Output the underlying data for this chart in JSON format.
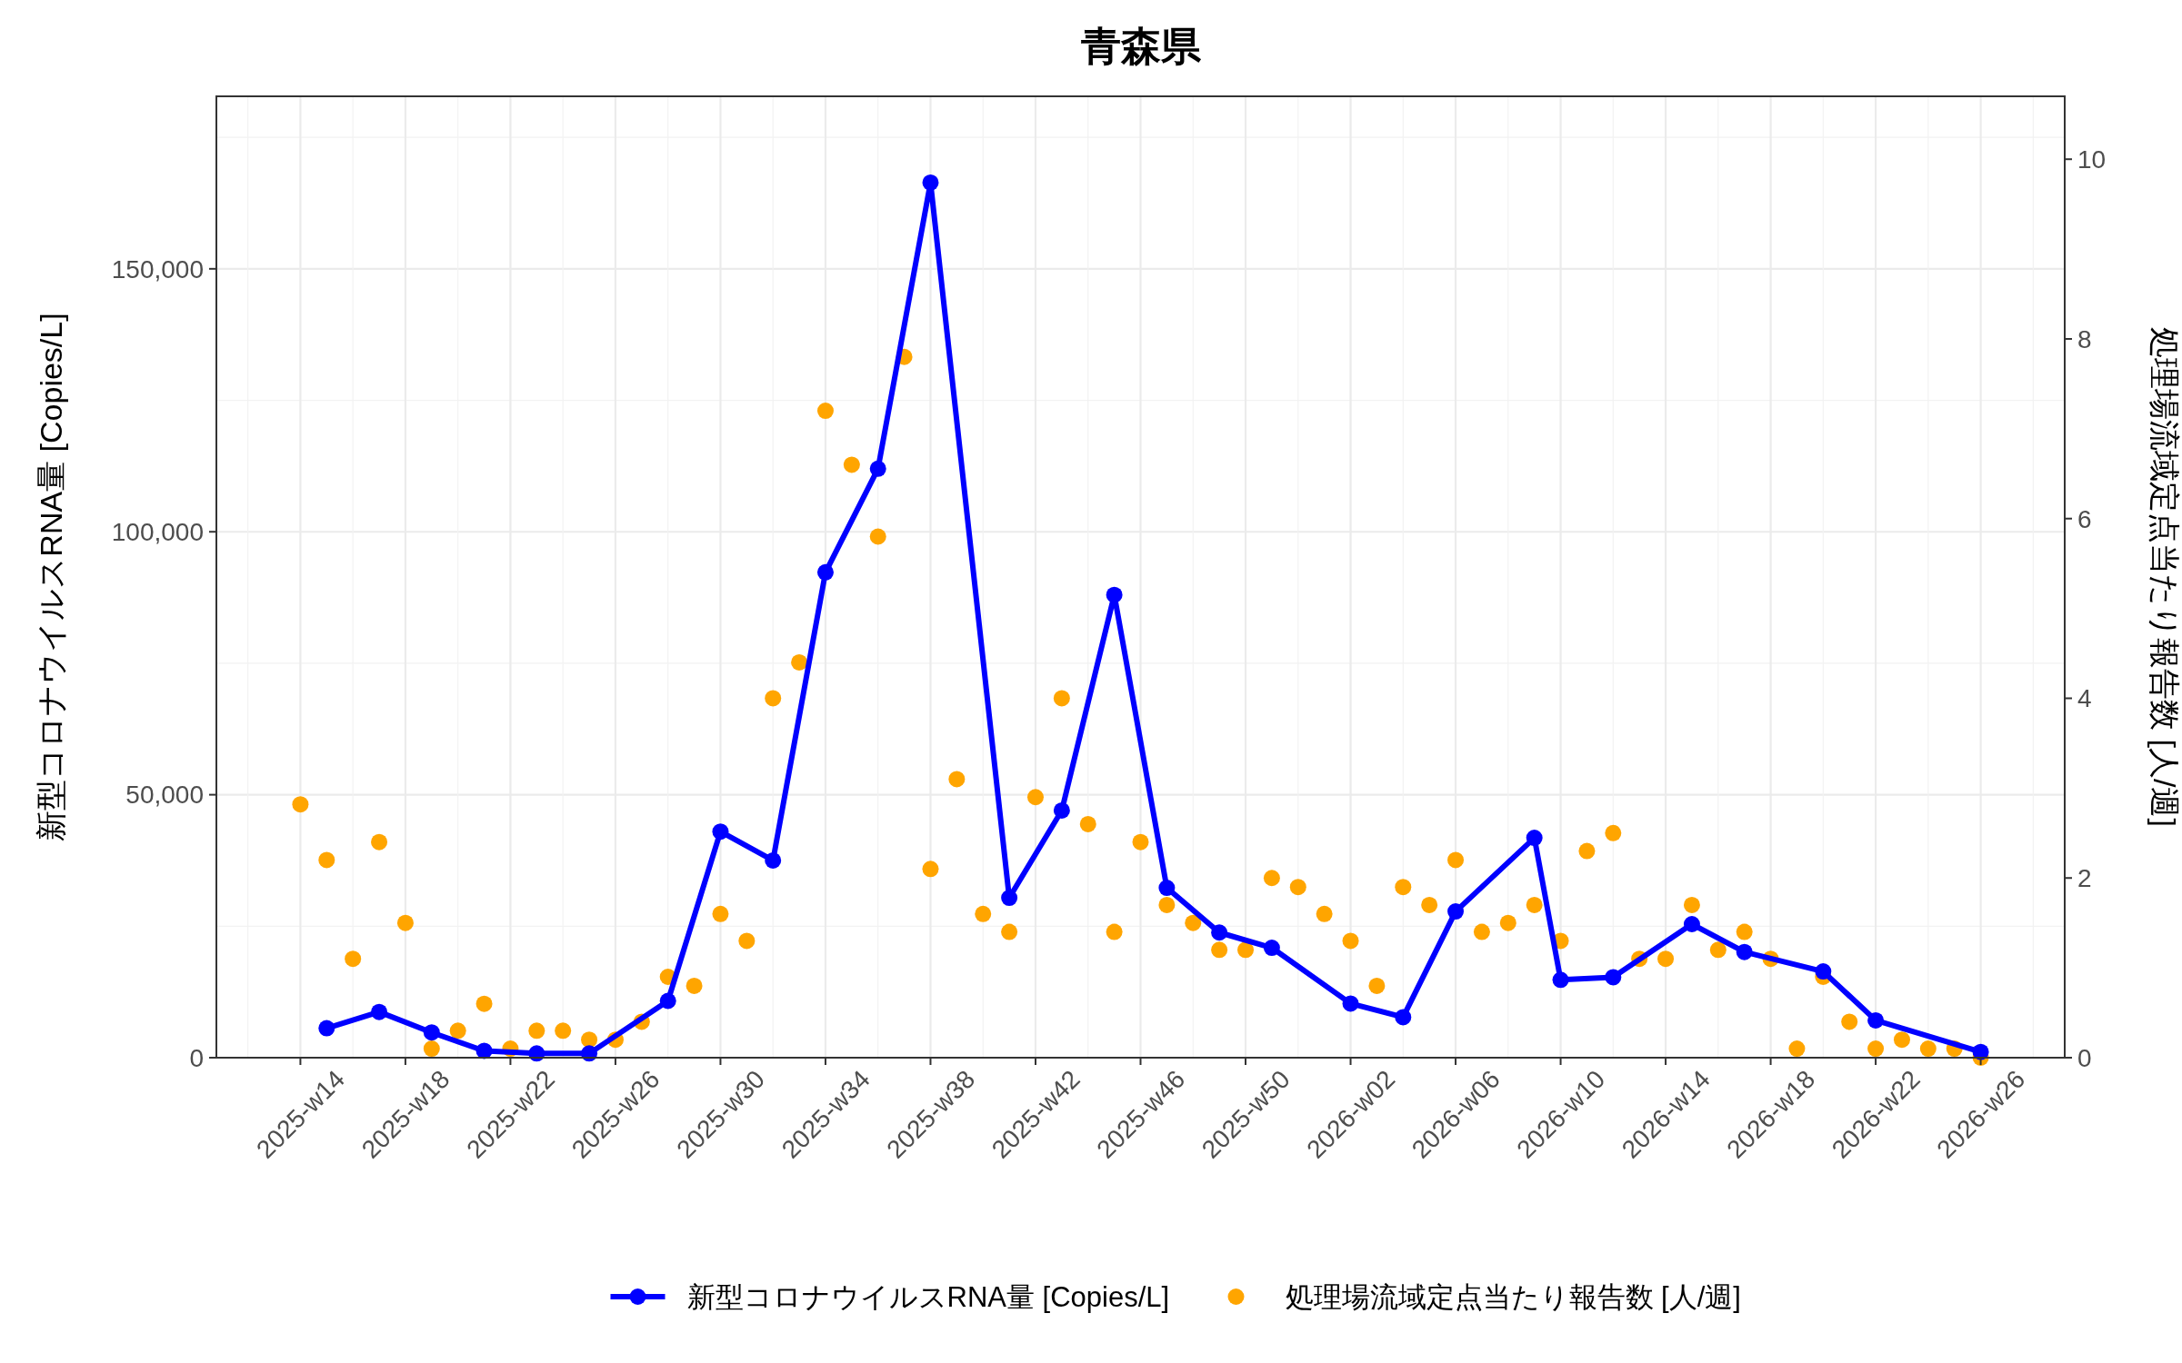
{
  "chart_data": {
    "type": "line",
    "title": "青森県",
    "ylabel": "新型コロナウイルスRNA量 [Copies/L]",
    "y2label": "処理場流域定点当たり報告数 [人/週]",
    "categories": [
      "2025-w14",
      null,
      null,
      null,
      "2025-w18",
      null,
      null,
      null,
      "2025-w22",
      null,
      null,
      null,
      "2025-w26",
      null,
      null,
      null,
      "2025-w30",
      null,
      null,
      null,
      "2025-w34",
      null,
      null,
      null,
      "2025-w38",
      null,
      null,
      null,
      "2025-w42",
      null,
      null,
      null,
      "2025-w46",
      null,
      null,
      null,
      "2025-w50",
      null,
      null,
      null,
      "2026-w02",
      null,
      null,
      null,
      "2026-w06",
      null,
      null,
      null,
      "2026-w10",
      null,
      null,
      null,
      "2026-w14",
      null,
      null,
      null,
      "2026-w18",
      null,
      null,
      null,
      "2026-w22",
      null,
      null,
      null,
      "2026-w26"
    ],
    "ylim": [
      0,
      182800
    ],
    "yticks": [
      {
        "value": 0,
        "label": "0"
      },
      {
        "value": 50000,
        "label": "50,000"
      },
      {
        "value": 100000,
        "label": "100,000"
      },
      {
        "value": 150000,
        "label": "150,000"
      }
    ],
    "y2lim": [
      0,
      10.7
    ],
    "y2ticks": [
      0,
      2,
      4,
      6,
      8,
      10
    ],
    "grid": true,
    "legend": "bottom",
    "series": [
      {
        "name": "新型コロナウイルスRNA量 [Copies/L]",
        "color": "#0000ff",
        "marker": "circle",
        "values": [
          null,
          5600,
          null,
          8700,
          null,
          4800,
          null,
          1300,
          null,
          800,
          null,
          800,
          null,
          null,
          10800,
          null,
          43000,
          null,
          37500,
          null,
          92300,
          null,
          112000,
          null,
          166400,
          null,
          null,
          30400,
          null,
          47000,
          null,
          88000,
          null,
          32300,
          null,
          23800,
          null,
          20900,
          null,
          null,
          10300,
          null,
          7700,
          null,
          27800,
          null,
          null,
          41800,
          14800,
          null,
          15300,
          null,
          null,
          25400,
          null,
          20100,
          null,
          null,
          16400,
          null,
          7100,
          null,
          null,
          null,
          1100
        ]
      },
      {
        "name": "処理場流域定点当たり報告数 [人/週]",
        "type": "scatter",
        "axis": "y2",
        "color": "#ffa500",
        "marker": "circle",
        "values": [
          2.82,
          2.2,
          1.1,
          2.4,
          1.5,
          0.1,
          0.3,
          0.6,
          0.1,
          0.3,
          0.3,
          0.2,
          0.2,
          0.4,
          0.9,
          0.8,
          1.6,
          1.3,
          4.0,
          4.4,
          7.2,
          6.6,
          5.8,
          7.8,
          2.1,
          3.1,
          1.6,
          1.4,
          2.9,
          4.0,
          2.6,
          1.4,
          2.4,
          1.7,
          1.5,
          1.2,
          1.2,
          2.0,
          1.9,
          1.6,
          1.3,
          0.8,
          1.9,
          1.7,
          2.2,
          1.4,
          1.5,
          1.7,
          1.3,
          2.3,
          2.5,
          1.1,
          1.1,
          1.7,
          1.2,
          1.4,
          1.1,
          0.1,
          0.9,
          0.4,
          0.1,
          0.2,
          0.1,
          0.1,
          0.0
        ]
      }
    ]
  }
}
